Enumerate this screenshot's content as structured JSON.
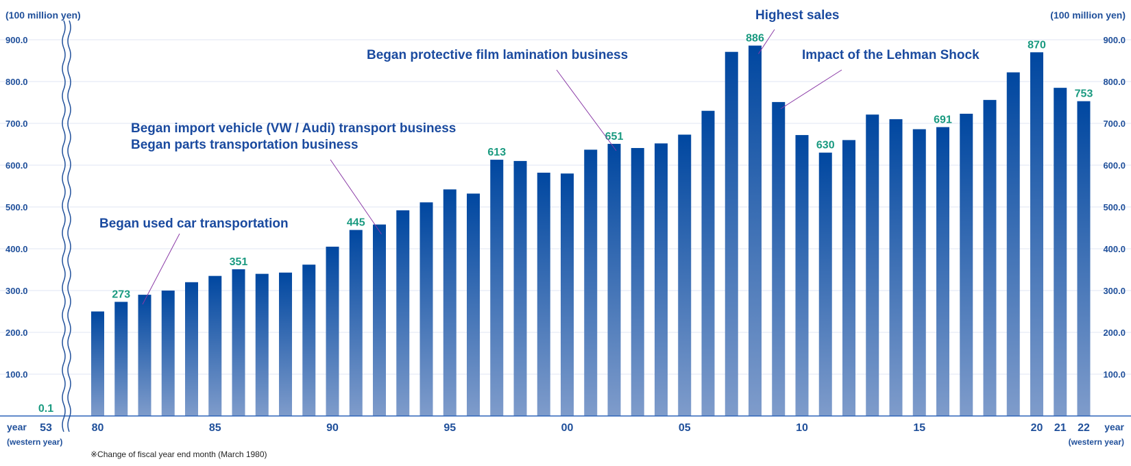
{
  "chart_data": {
    "type": "bar",
    "unit_left": "(100 million yen)",
    "unit_right": "(100 million yen)",
    "x_axis_word": "year",
    "x_axis_sub": "(western year)",
    "ylim": [
      0,
      950
    ],
    "yticks": [
      "100.0",
      "200.0",
      "300.0",
      "400.0",
      "500.0",
      "600.0",
      "700.0",
      "800.0",
      "900.0"
    ],
    "ytick_values": [
      100,
      200,
      300,
      400,
      500,
      600,
      700,
      800,
      900
    ],
    "grid": true,
    "axis_break_after_first": true,
    "categories": [
      "1953",
      "1980",
      "1981",
      "1982",
      "1983",
      "1984",
      "1985",
      "1986",
      "1987",
      "1988",
      "1989",
      "1990",
      "1991",
      "1992",
      "1993",
      "1994",
      "1995",
      "1996",
      "1997",
      "1998",
      "1999",
      "2000",
      "2001",
      "2002",
      "2003",
      "2004",
      "2005",
      "2006",
      "2007",
      "2008",
      "2009",
      "2010",
      "2011",
      "2012",
      "2013",
      "2014",
      "2015",
      "2016",
      "2017",
      "2018",
      "2019",
      "2020",
      "2021",
      "2022"
    ],
    "tick_labels": [
      {
        "index": 0,
        "text": "53"
      },
      {
        "index": 1,
        "text": "80"
      },
      {
        "index": 6,
        "text": "85"
      },
      {
        "index": 11,
        "text": "90"
      },
      {
        "index": 16,
        "text": "95"
      },
      {
        "index": 21,
        "text": "00"
      },
      {
        "index": 26,
        "text": "05"
      },
      {
        "index": 31,
        "text": "10"
      },
      {
        "index": 36,
        "text": "15"
      },
      {
        "index": 41,
        "text": "20"
      },
      {
        "index": 42,
        "text": "21"
      },
      {
        "index": 43,
        "text": "22"
      }
    ],
    "values": [
      0.1,
      250,
      273,
      290,
      300,
      320,
      335,
      351,
      340,
      343,
      362,
      405,
      445,
      458,
      492,
      511,
      542,
      532,
      613,
      610,
      582,
      580,
      637,
      651,
      641,
      652,
      673,
      730,
      871,
      886,
      751,
      672,
      630,
      660,
      721,
      710,
      686,
      691,
      723,
      756,
      822,
      870,
      785,
      753
    ],
    "data_labels": [
      {
        "index": 0,
        "text": "0.1"
      },
      {
        "index": 2,
        "text": "273"
      },
      {
        "index": 7,
        "text": "351"
      },
      {
        "index": 12,
        "text": "445"
      },
      {
        "index": 18,
        "text": "613"
      },
      {
        "index": 23,
        "text": "651"
      },
      {
        "index": 29,
        "text": "886"
      },
      {
        "index": 32,
        "text": "630"
      },
      {
        "index": 37,
        "text": "691"
      },
      {
        "index": 41,
        "text": "870"
      },
      {
        "index": 43,
        "text": "753"
      }
    ],
    "annotations": [
      {
        "lines": [
          "Began used car transportation"
        ],
        "target_index": 3
      },
      {
        "lines": [
          "Began import vehicle (VW / Audi) transport business",
          "Began parts transportation business"
        ],
        "target_index": 13
      },
      {
        "lines": [
          "Began protective film lamination business"
        ],
        "target_index": 23
      },
      {
        "lines": [
          "Highest sales"
        ],
        "target_index": 29
      },
      {
        "lines": [
          "Impact of the Lehman Shock"
        ],
        "target_index": 30
      }
    ],
    "footnote": "※Change of fiscal year end month (March 1980)"
  },
  "colors": {
    "bar_top": "#0047a0",
    "bar_bottom": "#7f9ccb",
    "axis": "#1f4f9a",
    "data_label": "#1a9a80",
    "annotation": "#1a4a9f",
    "leader": "#8a3aa6",
    "grid": "#dfe6f3"
  }
}
